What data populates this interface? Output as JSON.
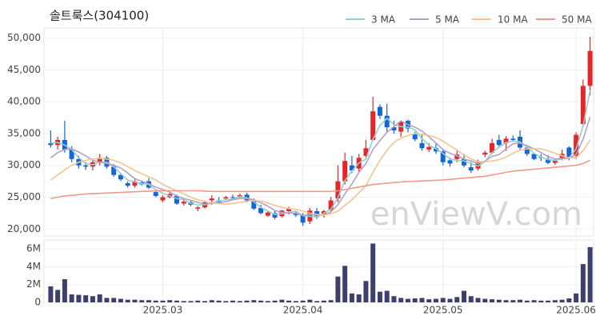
{
  "chart_data": {
    "type": "candlestick",
    "title": "솔트룩스(304100)",
    "watermark": "enViewV.com",
    "categories": [
      null,
      null,
      null,
      null,
      null,
      null,
      null,
      null,
      null,
      null,
      null,
      null,
      null,
      null,
      null,
      null,
      "2025.03",
      null,
      null,
      null,
      null,
      null,
      null,
      null,
      null,
      null,
      null,
      null,
      null,
      null,
      null,
      null,
      null,
      null,
      null,
      null,
      "2025.04",
      null,
      null,
      null,
      null,
      null,
      null,
      null,
      null,
      null,
      null,
      null,
      null,
      null,
      null,
      null,
      null,
      null,
      null,
      null,
      "2025.05",
      null,
      null,
      null,
      null,
      null,
      null,
      null,
      null,
      null,
      null,
      null,
      null,
      null,
      null,
      null,
      null,
      null,
      null,
      "2025.06",
      null,
      null
    ],
    "open": [
      33500,
      33200,
      34000,
      32500,
      31000,
      30000,
      29800,
      30500,
      31200,
      29800,
      28500,
      27200,
      26800,
      27300,
      27500,
      25800,
      24500,
      25000,
      25200,
      24000,
      24200,
      23200,
      23400,
      24500,
      24500,
      24800,
      25000,
      25000,
      25400,
      24500,
      23300,
      22100,
      22500,
      22000,
      22800,
      22500,
      22200,
      21200,
      22800,
      22200,
      23000,
      24800,
      27500,
      30000,
      29500,
      31500,
      34000,
      39200,
      37800,
      36000,
      35300,
      37000,
      35000,
      33500,
      32500,
      32700,
      32200,
      30800,
      31000,
      31000,
      29700,
      29500,
      31700,
      32000,
      34000,
      33500,
      34200,
      34500,
      32800,
      31800,
      31300,
      31000,
      30400,
      31000,
      32800,
      31500,
      36500,
      42500
    ],
    "high": [
      35500,
      34500,
      37000,
      33000,
      31500,
      30500,
      30800,
      31800,
      31500,
      30200,
      28800,
      27500,
      27800,
      27600,
      28000,
      26200,
      25300,
      25800,
      25400,
      24600,
      24500,
      23600,
      24500,
      25300,
      25000,
      25200,
      25400,
      25600,
      25700,
      24800,
      23800,
      22800,
      22800,
      23000,
      23500,
      22800,
      22500,
      23300,
      23300,
      23000,
      25000,
      30000,
      32000,
      31500,
      31800,
      34000,
      40800,
      39600,
      39700,
      37000,
      37000,
      37200,
      35300,
      35000,
      33500,
      33400,
      32500,
      31200,
      32400,
      31800,
      30500,
      30900,
      32300,
      34200,
      34800,
      34600,
      34700,
      35500,
      33200,
      32000,
      31800,
      31600,
      31000,
      32500,
      33000,
      35200,
      43500,
      50200
    ],
    "low": [
      32800,
      32500,
      32000,
      30500,
      29500,
      29300,
      29200,
      30000,
      29500,
      28200,
      27500,
      26500,
      26500,
      26800,
      26300,
      25000,
      24200,
      24800,
      23800,
      23700,
      23600,
      22800,
      23200,
      23800,
      23900,
      24600,
      24700,
      24800,
      24200,
      23000,
      22300,
      21900,
      21500,
      21800,
      22300,
      21900,
      20500,
      20800,
      21600,
      21800,
      22800,
      24200,
      27000,
      28800,
      29000,
      31000,
      34000,
      37300,
      35300,
      35000,
      34500,
      35200,
      33800,
      32300,
      32100,
      31800,
      30000,
      29800,
      30500,
      29700,
      28800,
      29200,
      31300,
      31800,
      33000,
      32300,
      33700,
      32400,
      31500,
      30800,
      30700,
      30200,
      30100,
      30800,
      30800,
      31000,
      36000,
      41000
    ],
    "close": [
      33200,
      34000,
      32500,
      31000,
      30000,
      29800,
      30500,
      31200,
      29800,
      28500,
      27800,
      26800,
      27500,
      27000,
      26500,
      25200,
      25000,
      25500,
      24000,
      24300,
      23800,
      23400,
      24200,
      24800,
      24100,
      25000,
      24900,
      25300,
      24500,
      23200,
      22500,
      22600,
      21800,
      22900,
      23200,
      22200,
      21000,
      22900,
      21900,
      22800,
      24500,
      27500,
      30700,
      29200,
      31200,
      32700,
      38500,
      37800,
      36000,
      35500,
      36800,
      35800,
      34100,
      32700,
      32900,
      32200,
      30500,
      30300,
      31700,
      30000,
      29200,
      30500,
      32000,
      33500,
      33200,
      34200,
      34000,
      32800,
      31800,
      31000,
      31200,
      30400,
      30700,
      31800,
      31200,
      34800,
      42500,
      48000
    ],
    "up_color": "#e8262a",
    "down_color": "#1565d8",
    "ylim": [
      18900,
      51600
    ],
    "yticks": [
      {
        "value": 20000,
        "label": "20,000"
      },
      {
        "value": 25000,
        "label": "25,000"
      },
      {
        "value": 30000,
        "label": "30,000"
      },
      {
        "value": 35000,
        "label": "35,000"
      },
      {
        "value": 40000,
        "label": "40,000"
      },
      {
        "value": 45000,
        "label": "45,000"
      },
      {
        "value": 50000,
        "label": "50,000"
      }
    ],
    "grid": true,
    "legend": "top-right",
    "series": [
      {
        "name": "3 MA",
        "color": "#8fd1cf",
        "values": [
          33500,
          33600,
          33200,
          32500,
          31200,
          30300,
          30100,
          30500,
          30500,
          29800,
          28700,
          27700,
          27400,
          27100,
          27000,
          26200,
          25600,
          25200,
          24800,
          24600,
          24000,
          23800,
          23800,
          24100,
          24400,
          24600,
          24700,
          25100,
          24900,
          24300,
          23400,
          22800,
          22300,
          22400,
          22600,
          22800,
          22100,
          22000,
          21900,
          22500,
          23100,
          24900,
          27600,
          29100,
          30400,
          31000,
          34100,
          36300,
          37400,
          36400,
          36100,
          36000,
          35600,
          34200,
          33200,
          32600,
          31900,
          31000,
          30800,
          30700,
          30300,
          29900,
          30600,
          32000,
          32900,
          33600,
          33800,
          33700,
          32900,
          31900,
          31300,
          30900,
          30800,
          31000,
          31200,
          32600,
          36200,
          41800
        ]
      },
      {
        "name": "5 MA",
        "color": "#b59fc8",
        "values": [
          31200,
          32000,
          32500,
          32600,
          32100,
          31500,
          30800,
          30500,
          30300,
          30000,
          29600,
          28800,
          27900,
          27500,
          27100,
          26600,
          26200,
          25800,
          25200,
          24800,
          24500,
          24200,
          23900,
          24000,
          24100,
          24300,
          24600,
          24800,
          24800,
          24600,
          24100,
          23600,
          22900,
          22600,
          22500,
          22500,
          22100,
          22300,
          22200,
          22200,
          22700,
          23800,
          25500,
          27100,
          28900,
          30300,
          32500,
          33900,
          35200,
          36100,
          37000,
          36400,
          36000,
          35400,
          34500,
          33500,
          32500,
          31900,
          31500,
          31000,
          30700,
          30300,
          30700,
          31400,
          31700,
          32600,
          33400,
          33500,
          33100,
          32600,
          32000,
          31400,
          31000,
          31100,
          31100,
          31700,
          34100,
          37600
        ]
      },
      {
        "name": "10 MA",
        "color": "#f2c58f",
        "values": [
          27700,
          28500,
          29300,
          30000,
          30500,
          30800,
          31000,
          31100,
          31000,
          30800,
          30400,
          29800,
          29200,
          28700,
          28200,
          27700,
          27000,
          26500,
          26000,
          25500,
          25000,
          24600,
          24300,
          24100,
          24000,
          23900,
          24000,
          24200,
          24400,
          24500,
          24400,
          24100,
          23700,
          23400,
          23200,
          23100,
          22800,
          22500,
          22300,
          22200,
          22400,
          22800,
          23700,
          24600,
          25700,
          26800,
          28900,
          30800,
          32400,
          33600,
          34300,
          34700,
          35000,
          34900,
          34700,
          34400,
          33800,
          33100,
          32400,
          31600,
          31000,
          30600,
          30600,
          30700,
          30900,
          31300,
          31900,
          32400,
          32600,
          32600,
          32600,
          32300,
          31900,
          31500,
          31200,
          31200,
          32300,
          34000
        ]
      },
      {
        "name": "50 MA",
        "color": "#f0988a",
        "values": [
          24800,
          25000,
          25200,
          25300,
          25400,
          25500,
          25550,
          25600,
          25650,
          25700,
          25750,
          25800,
          25850,
          25900,
          25950,
          26000,
          26000,
          26000,
          26000,
          26000,
          26000,
          26000,
          25950,
          25900,
          25900,
          25900,
          25900,
          25900,
          25900,
          25900,
          25900,
          25900,
          25900,
          25900,
          25900,
          25900,
          25900,
          25900,
          25900,
          25900,
          25900,
          26000,
          26200,
          26400,
          26600,
          26800,
          27000,
          27100,
          27200,
          27300,
          27400,
          27450,
          27500,
          27550,
          27600,
          27650,
          27700,
          27800,
          27900,
          28000,
          28100,
          28200,
          28300,
          28500,
          28700,
          28900,
          29100,
          29200,
          29300,
          29400,
          29500,
          29600,
          29700,
          29800,
          29900,
          30000,
          30300,
          30800
        ]
      }
    ],
    "volume": {
      "color": "#3d3f6e",
      "values": [
        1800000,
        1400000,
        2600000,
        900000,
        850000,
        800000,
        700000,
        900000,
        500000,
        500000,
        400000,
        300000,
        300000,
        250000,
        250000,
        200000,
        200000,
        250000,
        200000,
        150000,
        150000,
        200000,
        150000,
        250000,
        200000,
        150000,
        200000,
        150000,
        200000,
        250000,
        200000,
        150000,
        200000,
        300000,
        200000,
        150000,
        200000,
        300000,
        150000,
        200000,
        250000,
        2900000,
        4100000,
        1000000,
        900000,
        2400000,
        6600000,
        1200000,
        1300000,
        700000,
        500000,
        400000,
        450000,
        500000,
        350000,
        400000,
        500000,
        400000,
        600000,
        1300000,
        700000,
        500000,
        400000,
        350000,
        300000,
        250000,
        250000,
        300000,
        200000,
        250000,
        200000,
        200000,
        250000,
        300000,
        450000,
        1000000,
        4300000,
        6200000
      ],
      "ylim": [
        0,
        7000000
      ],
      "yticks": [
        0,
        {
          "value": 2000000,
          "label": "2M"
        },
        {
          "value": 4000000,
          "label": "4M"
        },
        {
          "value": 6000000,
          "label": "6M"
        }
      ]
    }
  }
}
